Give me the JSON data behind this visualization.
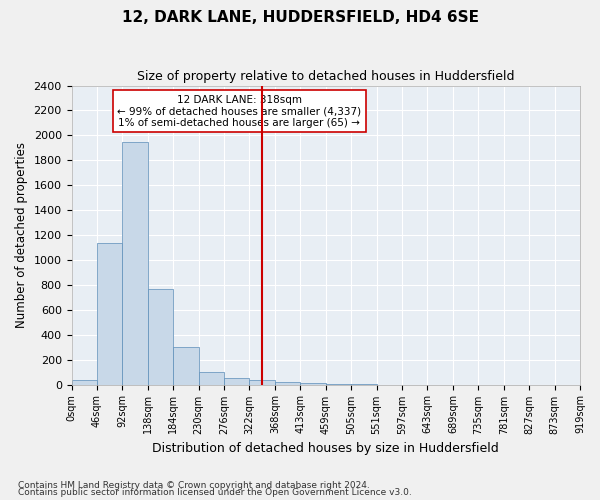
{
  "title": "12, DARK LANE, HUDDERSFIELD, HD4 6SE",
  "subtitle": "Size of property relative to detached houses in Huddersfield",
  "xlabel": "Distribution of detached houses by size in Huddersfield",
  "ylabel": "Number of detached properties",
  "footnote1": "Contains HM Land Registry data © Crown copyright and database right 2024.",
  "footnote2": "Contains public sector information licensed under the Open Government Licence v3.0.",
  "bar_color": "#c8d8e8",
  "bar_edge_color": "#5b8db8",
  "background_color": "#e8eef4",
  "grid_color": "#ffffff",
  "vline_x": 7,
  "vline_color": "#cc0000",
  "annotation_text": "12 DARK LANE: 318sqm\n← 99% of detached houses are smaller (4,337)\n1% of semi-detached houses are larger (65) →",
  "annotation_box_color": "#ffffff",
  "annotation_box_edge": "#cc0000",
  "bin_labels": [
    "0sqm",
    "46sqm",
    "92sqm",
    "138sqm",
    "184sqm",
    "230sqm",
    "276sqm",
    "322sqm",
    "368sqm",
    "413sqm",
    "459sqm",
    "505sqm",
    "551sqm",
    "597sqm",
    "643sqm",
    "689sqm",
    "735sqm",
    "781sqm",
    "827sqm",
    "873sqm",
    "919sqm"
  ],
  "bar_heights": [
    35,
    1140,
    1950,
    770,
    300,
    100,
    50,
    35,
    20,
    15,
    5,
    2,
    0,
    0,
    0,
    0,
    0,
    0,
    0,
    0
  ],
  "ylim": [
    0,
    2400
  ],
  "yticks": [
    0,
    200,
    400,
    600,
    800,
    1000,
    1200,
    1400,
    1600,
    1800,
    2000,
    2200,
    2400
  ]
}
